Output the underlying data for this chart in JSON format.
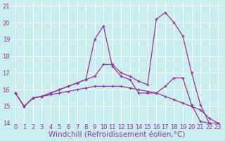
{
  "xlabel": "Windchill (Refroidissement éolien,°C)",
  "background_color": "#c8eef0",
  "grid_color": "#ffffff",
  "line_color": "#993399",
  "xlim": [
    -0.5,
    23.5
  ],
  "ylim": [
    14,
    21.2
  ],
  "xticks": [
    0,
    1,
    2,
    3,
    4,
    5,
    6,
    7,
    8,
    9,
    10,
    11,
    12,
    13,
    14,
    15,
    16,
    17,
    18,
    19,
    20,
    21,
    22,
    23
  ],
  "yticks": [
    14,
    15,
    16,
    17,
    18,
    19,
    20,
    21
  ],
  "line1_x": [
    0,
    1,
    2,
    3,
    4,
    5,
    6,
    7,
    8,
    9,
    10,
    11,
    12,
    13,
    14,
    15,
    16,
    17,
    18,
    19,
    20,
    21,
    22,
    23
  ],
  "line1_y": [
    15.8,
    15.0,
    15.5,
    15.6,
    15.7,
    15.8,
    15.9,
    16.0,
    16.1,
    16.2,
    16.2,
    16.2,
    16.2,
    16.1,
    16.0,
    15.9,
    15.8,
    15.6,
    15.4,
    15.2,
    15.0,
    14.8,
    14.3,
    14.0
  ],
  "line2_x": [
    0,
    1,
    2,
    3,
    4,
    5,
    6,
    7,
    8,
    9,
    10,
    11,
    12,
    13,
    14,
    15,
    16,
    17,
    18,
    19,
    20,
    21,
    22,
    23
  ],
  "line2_y": [
    15.8,
    15.0,
    15.5,
    15.6,
    15.8,
    16.0,
    16.2,
    16.4,
    16.6,
    19.0,
    19.8,
    17.4,
    16.8,
    16.6,
    15.8,
    15.8,
    15.8,
    16.2,
    16.7,
    16.7,
    15.1,
    14.1,
    14.0,
    14.0
  ],
  "line3_x": [
    0,
    1,
    2,
    3,
    4,
    5,
    6,
    7,
    8,
    9,
    10,
    11,
    12,
    13,
    14,
    15,
    16,
    17,
    18,
    19,
    20,
    21,
    22,
    23
  ],
  "line3_y": [
    15.8,
    15.0,
    15.5,
    15.6,
    15.8,
    16.0,
    16.2,
    16.4,
    16.6,
    16.8,
    17.5,
    17.5,
    17.0,
    16.8,
    16.5,
    16.3,
    20.2,
    20.6,
    20.0,
    19.2,
    17.0,
    15.1,
    14.0,
    14.0
  ],
  "tick_fontsize": 6,
  "xlabel_fontsize": 7.5,
  "figwidth": 3.2,
  "figheight": 2.0,
  "dpi": 100
}
